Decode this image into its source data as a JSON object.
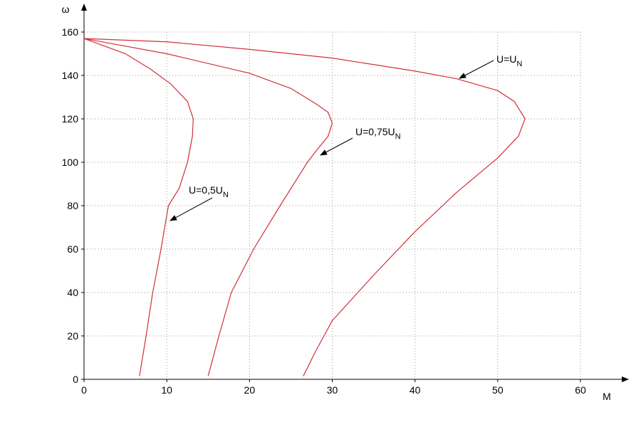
{
  "chart_data": {
    "type": "line",
    "xlabel": "M",
    "ylabel": "ω",
    "xlim": [
      0,
      60
    ],
    "ylim": [
      0,
      160
    ],
    "xticks": [
      0,
      10,
      20,
      30,
      40,
      50,
      60
    ],
    "yticks": [
      0,
      20,
      40,
      60,
      80,
      100,
      120,
      140,
      160
    ],
    "grid": true,
    "series": [
      {
        "color": "#d0303a",
        "x": [
          0,
          10,
          20,
          30,
          40,
          45,
          50,
          52,
          53.3,
          52.5,
          50,
          45,
          40,
          35,
          30,
          28,
          26.5
        ],
        "values": [
          157,
          155.5,
          152,
          148,
          142,
          138.5,
          133,
          128,
          120,
          112,
          102,
          86,
          68,
          48,
          27,
          13,
          1.5
        ]
      },
      {
        "color": "#d0303a",
        "x": [
          0,
          10,
          20,
          25,
          28,
          29.5,
          30,
          29.5,
          28,
          27,
          23.7,
          20.5,
          17.8,
          16.3,
          15
        ],
        "values": [
          157,
          150,
          141,
          134,
          127,
          123,
          118,
          112,
          105,
          100,
          80,
          60,
          40,
          20,
          1.5
        ]
      },
      {
        "color": "#d0303a",
        "x": [
          0,
          5,
          8,
          10.5,
          12.5,
          13.2,
          13.1,
          12.5,
          11.5,
          10.2,
          9.3,
          8.3,
          7.5,
          6.7
        ],
        "values": [
          157,
          150,
          143,
          136,
          128,
          120,
          112,
          100,
          88,
          80,
          60,
          40,
          20,
          1.5
        ]
      }
    ],
    "annotations": [
      {
        "text": "U=U",
        "subscript": "N"
      },
      {
        "text": "U=0,75U",
        "subscript": "N"
      },
      {
        "text": "U=0,5U",
        "subscript": "N"
      }
    ]
  }
}
